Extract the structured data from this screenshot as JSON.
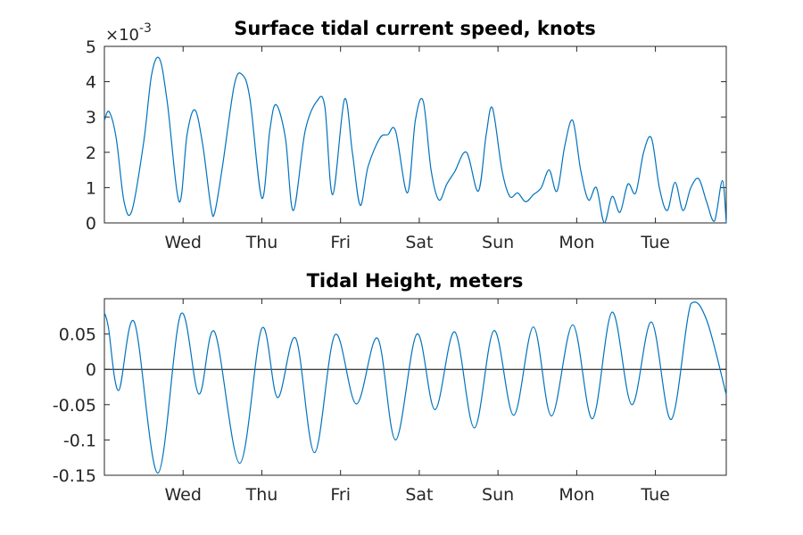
{
  "chart_data": [
    {
      "type": "line",
      "title": "Surface tidal current speed, knots",
      "xlabel": "",
      "ylabel": "",
      "y_exponent_base": "×10",
      "y_exponent_power": "-3",
      "ylim": [
        0,
        5
      ],
      "yticks": [
        0,
        1,
        2,
        3,
        4,
        5
      ],
      "ytick_labels": [
        "0",
        "1",
        "2",
        "3",
        "4",
        "5"
      ],
      "xlim": [
        0,
        7.9
      ],
      "xticks": [
        1,
        2,
        3,
        4,
        5,
        6,
        7
      ],
      "xtick_labels": [
        "Wed",
        "Thu",
        "Fri",
        "Sat",
        "Sun",
        "Mon",
        "Tue"
      ],
      "grid": false,
      "line_color": "#0072bd",
      "series": [
        {
          "x": [
            0.0,
            0.06,
            0.15,
            0.25,
            0.35,
            0.5,
            0.6,
            0.7,
            0.8,
            0.95,
            1.05,
            1.15,
            1.25,
            1.35,
            1.4,
            1.5,
            1.65,
            1.75,
            1.85,
            2.0,
            2.1,
            2.18,
            2.3,
            2.4,
            2.55,
            2.7,
            2.8,
            2.9,
            3.05,
            3.15,
            3.25,
            3.35,
            3.5,
            3.6,
            3.7,
            3.85,
            3.95,
            4.05,
            4.15,
            4.25,
            4.35,
            4.45,
            4.6,
            4.75,
            4.85,
            4.93,
            5.05,
            5.15,
            5.25,
            5.35,
            5.45,
            5.55,
            5.65,
            5.75,
            5.85,
            5.95,
            6.05,
            6.15,
            6.25,
            6.35,
            6.45,
            6.55,
            6.65,
            6.75,
            6.85,
            6.95,
            7.05,
            7.15,
            7.25,
            7.35,
            7.45,
            7.55,
            7.65,
            7.75,
            7.85,
            7.9
          ],
          "y": [
            2.9,
            3.15,
            2.4,
            0.6,
            0.35,
            2.3,
            4.2,
            4.65,
            3.4,
            0.6,
            2.5,
            3.2,
            2.2,
            0.5,
            0.28,
            1.6,
            3.9,
            4.2,
            3.5,
            0.7,
            2.6,
            3.35,
            2.4,
            0.35,
            2.6,
            3.45,
            3.3,
            0.8,
            3.5,
            2.0,
            0.5,
            1.6,
            2.4,
            2.5,
            2.6,
            0.85,
            2.9,
            3.45,
            1.5,
            0.65,
            1.1,
            1.45,
            2.0,
            0.9,
            2.5,
            3.25,
            1.5,
            0.75,
            0.85,
            0.6,
            0.8,
            1.0,
            1.5,
            0.9,
            2.2,
            2.9,
            1.5,
            0.65,
            1.0,
            0.0,
            0.75,
            0.3,
            1.1,
            0.85,
            2.0,
            2.4,
            1.0,
            0.35,
            1.15,
            0.35,
            1.0,
            1.25,
            0.6,
            0.05,
            1.2,
            0.0
          ]
        }
      ]
    },
    {
      "type": "line",
      "title": "Tidal Height, meters",
      "xlabel": "",
      "ylabel": "",
      "ylim": [
        -0.15,
        0.1
      ],
      "yticks": [
        -0.15,
        -0.1,
        -0.05,
        0,
        0.05
      ],
      "ytick_labels": [
        "-0.15",
        "-0.1",
        "-0.05",
        "0",
        "0.05"
      ],
      "xlim": [
        0,
        7.9
      ],
      "xticks": [
        1,
        2,
        3,
        4,
        5,
        6,
        7
      ],
      "xtick_labels": [
        "Wed",
        "Thu",
        "Fri",
        "Sat",
        "Sun",
        "Mon",
        "Tue"
      ],
      "zero_line": true,
      "grid": false,
      "line_color": "#0072bd",
      "series": [
        {
          "x": [
            0.0,
            0.05,
            0.18,
            0.38,
            0.68,
            0.97,
            1.2,
            1.4,
            1.72,
            2.0,
            2.2,
            2.43,
            2.67,
            2.93,
            3.2,
            3.47,
            3.7,
            3.97,
            4.2,
            4.45,
            4.7,
            4.95,
            5.2,
            5.45,
            5.68,
            5.95,
            6.2,
            6.45,
            6.7,
            6.95,
            7.2,
            7.45,
            7.65,
            7.9
          ],
          "y": [
            0.08,
            0.06,
            -0.03,
            0.067,
            -0.147,
            0.078,
            -0.035,
            0.053,
            -0.133,
            0.058,
            -0.04,
            0.044,
            -0.118,
            0.049,
            -0.049,
            0.044,
            -0.1,
            0.05,
            -0.057,
            0.053,
            -0.083,
            0.055,
            -0.065,
            0.06,
            -0.066,
            0.063,
            -0.07,
            0.081,
            -0.05,
            0.067,
            -0.071,
            0.093,
            0.07,
            -0.036
          ]
        }
      ]
    }
  ]
}
